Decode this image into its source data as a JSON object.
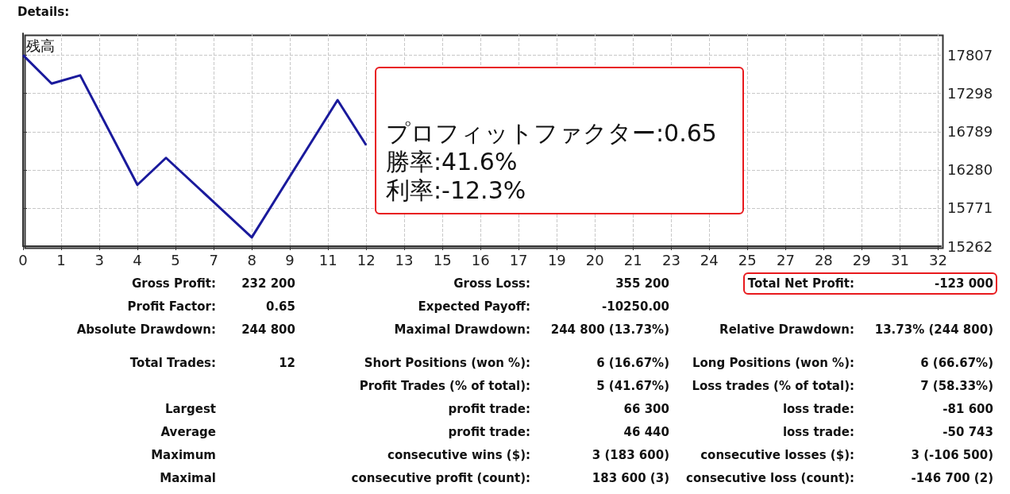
{
  "chart_data": {
    "type": "line",
    "title": "Details:",
    "ylabel": "残高",
    "x": [
      0,
      1,
      2,
      4,
      5,
      8,
      11,
      12
    ],
    "series": [
      {
        "color": "#1a1a9c",
        "values": [
          17810,
          17430,
          17540,
          16080,
          16440,
          15380,
          17210,
          16610
        ]
      }
    ],
    "xlim": [
      0,
      32.1
    ],
    "xticks": [
      0,
      {
        "value": 1.33,
        "label": "1"
      },
      {
        "value": 2.67,
        "label": "3"
      },
      4,
      {
        "value": 5.33,
        "label": "5"
      },
      {
        "value": 6.67,
        "label": "7"
      },
      8,
      {
        "value": 9.33,
        "label": "9"
      },
      {
        "value": 10.67,
        "label": "11"
      },
      12,
      {
        "value": 13.33,
        "label": "13"
      },
      {
        "value": 14.67,
        "label": "15"
      },
      16,
      {
        "value": 17.33,
        "label": "17"
      },
      {
        "value": 18.67,
        "label": "19"
      },
      20,
      {
        "value": 21.33,
        "label": "21"
      },
      {
        "value": 22.67,
        "label": "23"
      },
      24,
      {
        "value": 25.33,
        "label": "25"
      },
      {
        "value": 26.67,
        "label": "27"
      },
      28,
      {
        "value": 29.33,
        "label": "29"
      },
      {
        "value": 30.67,
        "label": "31"
      },
      32
    ],
    "ylim": [
      15262,
      18100
    ],
    "yticks": [
      15262,
      15771,
      16280,
      16789,
      17298,
      17807
    ],
    "grid": true,
    "marker": "none",
    "line_style": "solid",
    "annotations": [
      "プロフィットファクター:0.65",
      "勝率:41.6%",
      "利率:-12.3%",
      "Gross Profit:",
      "232 200",
      "Gross Loss:",
      "355 200",
      "Total Net Profit:",
      "-123 000",
      "Profit Factor:",
      "0.65",
      "Expected Payoff:",
      "-10250.00",
      "Absolute Drawdown:",
      "244 800",
      "Maximal Drawdown:",
      "244 800 (13.73%)",
      "Relative Drawdown:",
      "13.73% (244 800)",
      "Total Trades:",
      "12",
      "Short Positions (won %):",
      "6 (16.67%)",
      "Long Positions (won %):",
      "6 (66.67%)",
      "Profit Trades (% of total):",
      "5 (41.67%)",
      "Loss trades (% of total):",
      "7 (58.33%)",
      "Largest",
      "profit trade:",
      "66 300",
      "loss trade:",
      "-81 600",
      "Average",
      "profit trade:",
      "46 440",
      "loss trade:",
      "-50 743",
      "Maximum",
      "consecutive wins ($):",
      "3 (183 600)",
      "consecutive losses ($):",
      "3 (-106 500)",
      "Maximal",
      "consecutive profit (count):",
      "183 600 (3)",
      "consecutive loss (count):",
      "-146 700 (2)"
    ]
  }
}
